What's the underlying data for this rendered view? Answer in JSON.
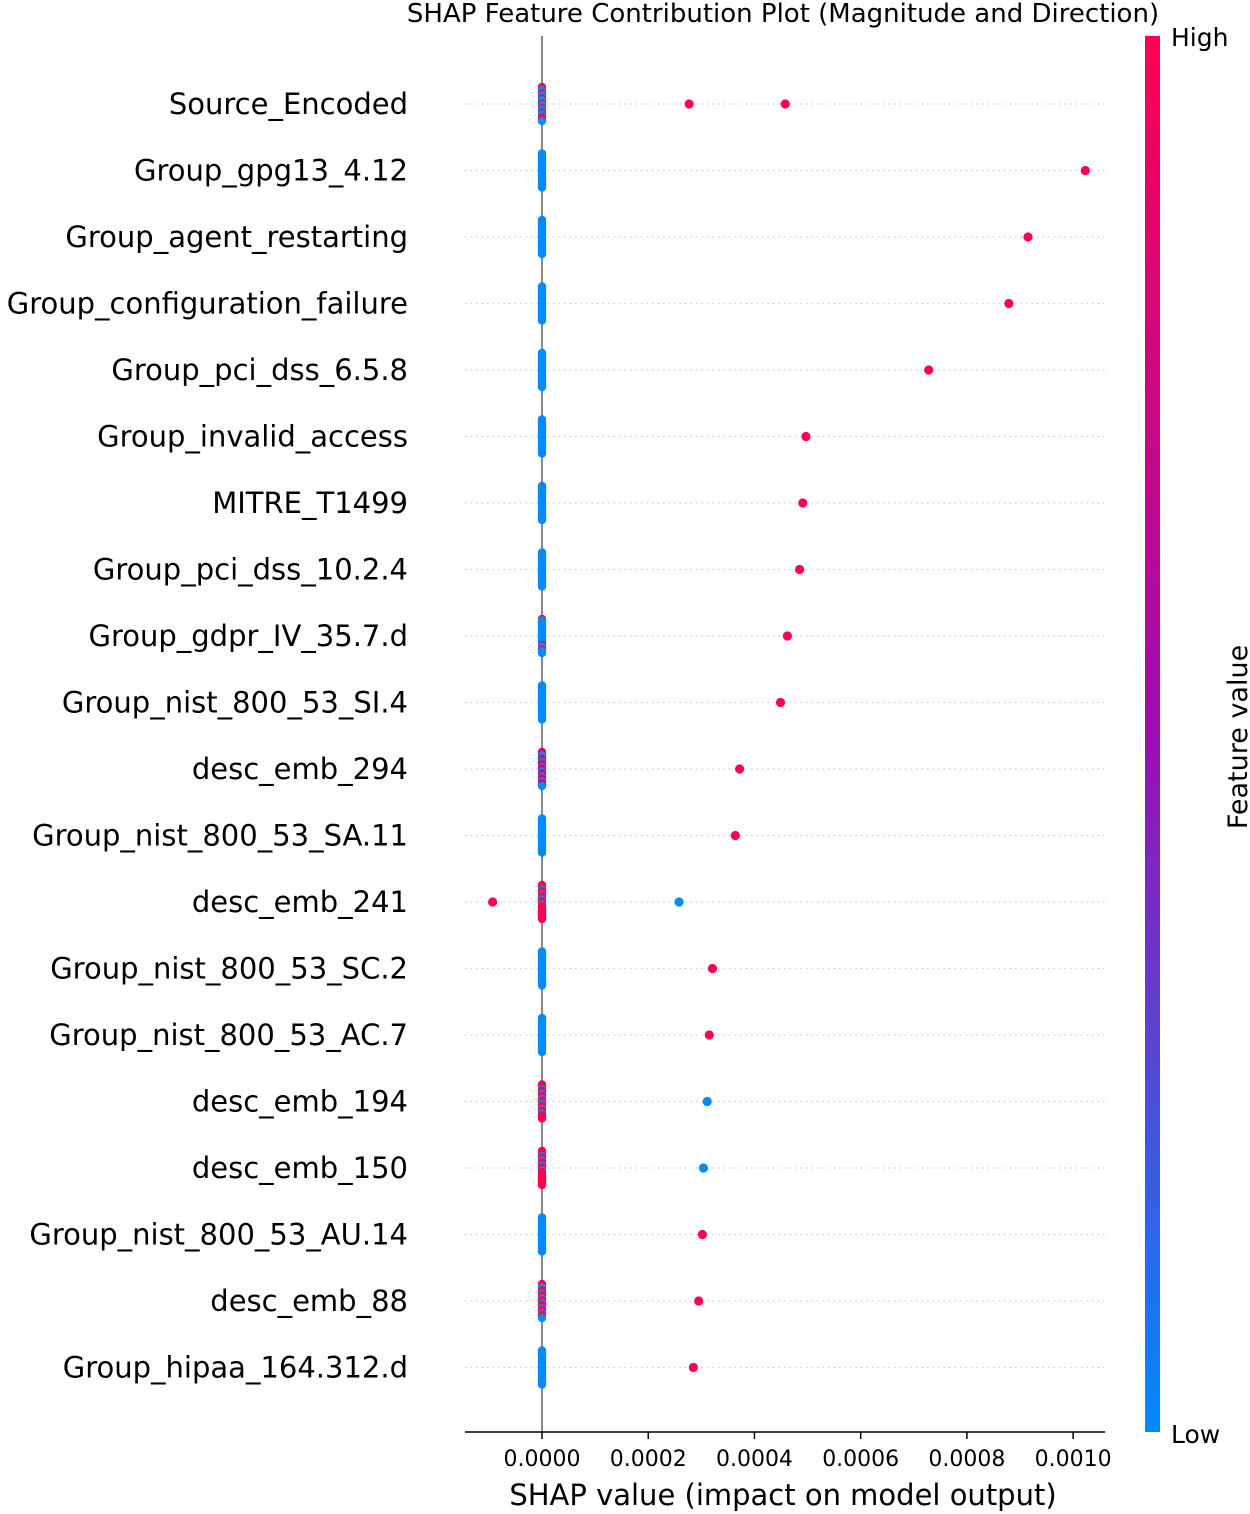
{
  "chart_data": {
    "type": "scatter",
    "subtype": "shap-beeswarm",
    "title": "SHAP Feature Contribution Plot (Magnitude and Direction)",
    "xlabel": "SHAP value (impact on model output)",
    "ylabel": "",
    "xlim": [
      -0.000145,
      0.00106
    ],
    "xticks": [
      0.0,
      0.0002,
      0.0004,
      0.0006,
      0.0008,
      0.001
    ],
    "xtick_labels": [
      "0.0000",
      "0.0002",
      "0.0004",
      "0.0006",
      "0.0008",
      "0.0010"
    ],
    "grid": false,
    "colorbar": {
      "title": "Feature value",
      "high_label": "High",
      "low_label": "Low",
      "low_color": "#008afb",
      "mid_color": "#9d0eb0",
      "high_color": "#ff0052"
    },
    "features": [
      {
        "name": "Source_Encoded",
        "outliers": [
          {
            "x": 0.000277,
            "v": 1
          },
          {
            "x": 0.000458,
            "v": 1
          }
        ],
        "cluster_low": 0.6,
        "cluster_high": 0.4
      },
      {
        "name": "Group_gpg13_4.12",
        "outliers": [
          {
            "x": 0.001023,
            "v": 1
          }
        ],
        "cluster_low": 1,
        "cluster_high": 0
      },
      {
        "name": "Group_agent_restarting",
        "outliers": [
          {
            "x": 0.000915,
            "v": 1
          }
        ],
        "cluster_low": 1,
        "cluster_high": 0
      },
      {
        "name": "Group_configuration_failure",
        "outliers": [
          {
            "x": 0.000879,
            "v": 1
          }
        ],
        "cluster_low": 1,
        "cluster_high": 0
      },
      {
        "name": "Group_pci_dss_6.5.8",
        "outliers": [
          {
            "x": 0.000728,
            "v": 1
          }
        ],
        "cluster_low": 1,
        "cluster_high": 0
      },
      {
        "name": "Group_invalid_access",
        "outliers": [
          {
            "x": 0.000497,
            "v": 1
          }
        ],
        "cluster_low": 1,
        "cluster_high": 0
      },
      {
        "name": "MITRE_T1499",
        "outliers": [
          {
            "x": 0.000491,
            "v": 1
          }
        ],
        "cluster_low": 1,
        "cluster_high": 0
      },
      {
        "name": "Group_pci_dss_10.2.4",
        "outliers": [
          {
            "x": 0.000485,
            "v": 1
          }
        ],
        "cluster_low": 1,
        "cluster_high": 0
      },
      {
        "name": "Group_gdpr_IV_35.7.d",
        "outliers": [
          {
            "x": 0.000462,
            "v": 1
          }
        ],
        "cluster_low": 0.9,
        "cluster_high": 0.1
      },
      {
        "name": "Group_nist_800_53_SI.4",
        "outliers": [
          {
            "x": 0.000449,
            "v": 1
          }
        ],
        "cluster_low": 1,
        "cluster_high": 0
      },
      {
        "name": "desc_emb_294",
        "outliers": [
          {
            "x": 0.000372,
            "v": 1
          }
        ],
        "cluster_low": 0.4,
        "cluster_high": 0.3
      },
      {
        "name": "Group_nist_800_53_SA.11",
        "outliers": [
          {
            "x": 0.000364,
            "v": 1
          }
        ],
        "cluster_low": 1,
        "cluster_high": 0
      },
      {
        "name": "desc_emb_241",
        "outliers": [
          {
            "x": -9.3e-05,
            "v": 1
          },
          {
            "x": 0.000258,
            "v": 0
          }
        ],
        "cluster_low": 0.2,
        "cluster_high": 0.8
      },
      {
        "name": "Group_nist_800_53_SC.2",
        "outliers": [
          {
            "x": 0.000321,
            "v": 1
          }
        ],
        "cluster_low": 1,
        "cluster_high": 0
      },
      {
        "name": "Group_nist_800_53_AC.7",
        "outliers": [
          {
            "x": 0.000315,
            "v": 1
          }
        ],
        "cluster_low": 1,
        "cluster_high": 0
      },
      {
        "name": "desc_emb_194",
        "outliers": [
          {
            "x": 0.000311,
            "v": 0
          }
        ],
        "cluster_low": 0.3,
        "cluster_high": 0.7
      },
      {
        "name": "desc_emb_150",
        "outliers": [
          {
            "x": 0.000304,
            "v": 0
          }
        ],
        "cluster_low": 0.2,
        "cluster_high": 0.8
      },
      {
        "name": "Group_nist_800_53_AU.14",
        "outliers": [
          {
            "x": 0.000302,
            "v": 1
          }
        ],
        "cluster_low": 1,
        "cluster_high": 0
      },
      {
        "name": "desc_emb_88",
        "outliers": [
          {
            "x": 0.000295,
            "v": 1
          }
        ],
        "cluster_low": 0.4,
        "cluster_high": 0.6
      },
      {
        "name": "Group_hipaa_164.312.d",
        "outliers": [
          {
            "x": 0.000285,
            "v": 1
          }
        ],
        "cluster_low": 1,
        "cluster_high": 0
      }
    ]
  }
}
